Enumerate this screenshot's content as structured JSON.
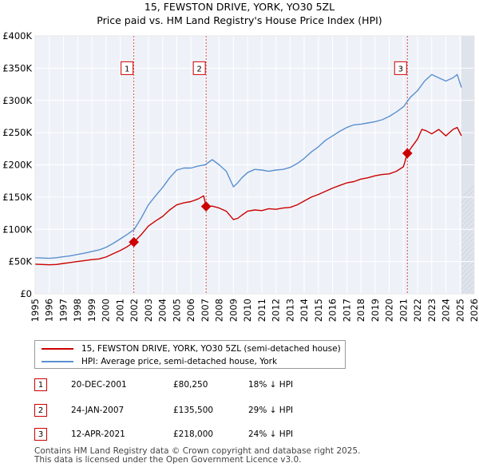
{
  "chart_data": {
    "type": "line",
    "title": "15, FEWSTON DRIVE, YORK, YO30 5ZL",
    "subtitle": "Price paid vs. HM Land Registry's House Price Index (HPI)",
    "xlim": [
      1995,
      2026
    ],
    "ylim": [
      0,
      400000
    ],
    "x_ticks": [
      "1995",
      "1996",
      "1997",
      "1998",
      "1999",
      "2000",
      "2001",
      "2002",
      "2003",
      "2004",
      "2005",
      "2006",
      "2007",
      "2008",
      "2009",
      "2010",
      "2011",
      "2012",
      "2013",
      "2014",
      "2015",
      "2016",
      "2017",
      "2018",
      "2019",
      "2020",
      "2021",
      "2022",
      "2023",
      "2024",
      "2025",
      "2026"
    ],
    "y_ticks": [
      {
        "value": 0,
        "label": "£0"
      },
      {
        "value": 50000,
        "label": "£50K"
      },
      {
        "value": 100000,
        "label": "£100K"
      },
      {
        "value": 150000,
        "label": "£150K"
      },
      {
        "value": 200000,
        "label": "£200K"
      },
      {
        "value": 250000,
        "label": "£250K"
      },
      {
        "value": 300000,
        "label": "£300K"
      },
      {
        "value": 350000,
        "label": "£350K"
      },
      {
        "value": 400000,
        "label": "£400K"
      }
    ],
    "grid": true,
    "series": [
      {
        "name": "15, FEWSTON DRIVE, YORK, YO30 5ZL (semi-detached house)",
        "color": "#cc0000",
        "x": [
          1995.0,
          1995.5,
          1996.0,
          1996.5,
          1997.0,
          1997.5,
          1998.0,
          1998.5,
          1999.0,
          1999.5,
          2000.0,
          2000.5,
          2001.0,
          2001.5,
          2001.97,
          2002.5,
          2003.0,
          2003.5,
          2004.0,
          2004.5,
          2005.0,
          2005.5,
          2006.0,
          2006.5,
          2006.9,
          2007.07,
          2007.5,
          2008.0,
          2008.5,
          2009.0,
          2009.3,
          2009.6,
          2010.0,
          2010.5,
          2011.0,
          2011.5,
          2012.0,
          2012.5,
          2013.0,
          2013.5,
          2014.0,
          2014.5,
          2015.0,
          2015.5,
          2016.0,
          2016.5,
          2017.0,
          2017.5,
          2018.0,
          2018.5,
          2019.0,
          2019.5,
          2020.0,
          2020.5,
          2021.0,
          2021.28,
          2021.6,
          2022.0,
          2022.3,
          2022.6,
          2023.0,
          2023.5,
          2024.0,
          2024.5,
          2024.8,
          2025.1
        ],
        "values": [
          46000,
          45500,
          45000,
          45500,
          47000,
          48500,
          50000,
          51500,
          53000,
          54000,
          57000,
          62000,
          67000,
          73000,
          80250,
          92000,
          105000,
          113000,
          120000,
          130000,
          138000,
          141000,
          143000,
          147000,
          152000,
          135500,
          136000,
          133000,
          128000,
          115000,
          117000,
          122000,
          128000,
          130000,
          129000,
          132000,
          131000,
          133000,
          134000,
          138000,
          144000,
          150000,
          154000,
          159000,
          164000,
          168000,
          172000,
          174000,
          178000,
          180000,
          183000,
          185000,
          186000,
          190000,
          197000,
          218000,
          228000,
          240000,
          255000,
          253000,
          248000,
          255000,
          245000,
          255000,
          258000,
          245000
        ]
      },
      {
        "name": "HPI: Average price, semi-detached house, York",
        "color": "#5b8fd0",
        "x": [
          1995.0,
          1995.5,
          1996.0,
          1996.5,
          1997.0,
          1997.5,
          1998.0,
          1998.5,
          1999.0,
          1999.5,
          2000.0,
          2000.5,
          2001.0,
          2001.5,
          2002.0,
          2002.5,
          2003.0,
          2003.5,
          2004.0,
          2004.5,
          2005.0,
          2005.5,
          2006.0,
          2006.5,
          2007.0,
          2007.5,
          2008.0,
          2008.5,
          2009.0,
          2009.3,
          2009.6,
          2010.0,
          2010.5,
          2011.0,
          2011.5,
          2012.0,
          2012.5,
          2013.0,
          2013.5,
          2014.0,
          2014.5,
          2015.0,
          2015.5,
          2016.0,
          2016.5,
          2017.0,
          2017.5,
          2018.0,
          2018.5,
          2019.0,
          2019.5,
          2020.0,
          2020.5,
          2021.0,
          2021.5,
          2022.0,
          2022.5,
          2023.0,
          2023.5,
          2024.0,
          2024.5,
          2024.8,
          2025.1
        ],
        "values": [
          56000,
          55500,
          55000,
          56000,
          57500,
          59000,
          61000,
          63000,
          65500,
          68000,
          72000,
          78000,
          85000,
          92000,
          100000,
          118000,
          138000,
          152000,
          165000,
          180000,
          192000,
          195000,
          195000,
          198000,
          200000,
          208000,
          200000,
          190000,
          166000,
          172000,
          180000,
          188000,
          193000,
          192000,
          190000,
          192000,
          193000,
          196000,
          202000,
          210000,
          220000,
          228000,
          238000,
          245000,
          252000,
          258000,
          262000,
          263000,
          265000,
          267000,
          270000,
          275000,
          282000,
          290000,
          305000,
          315000,
          330000,
          340000,
          335000,
          330000,
          335000,
          340000,
          320000
        ]
      }
    ],
    "sales": [
      {
        "marker": "1",
        "x": 2001.97,
        "date": "20-DEC-2001",
        "price": 80250,
        "price_label": "£80,250",
        "hpi_label": "18% ↓ HPI"
      },
      {
        "marker": "2",
        "x": 2007.07,
        "date": "24-JAN-2007",
        "price": 135500,
        "price_label": "£135,500",
        "hpi_label": "29% ↓ HPI"
      },
      {
        "marker": "3",
        "x": 2021.28,
        "date": "12-APR-2021",
        "price": 218000,
        "price_label": "£218,000",
        "hpi_label": "24% ↓ HPI"
      }
    ],
    "marker_y": 350000,
    "future_shade_from": 2025.1
  },
  "legend": {
    "items": [
      {
        "label": "15, FEWSTON DRIVE, YORK, YO30 5ZL (semi-detached house)",
        "color": "#cc0000"
      },
      {
        "label": "HPI: Average price, semi-detached house, York",
        "color": "#5b8fd0"
      }
    ]
  },
  "footer": {
    "line1": "Contains HM Land Registry data © Crown copyright and database right 2025.",
    "line2": "This data is licensed under the Open Government Licence v3.0."
  }
}
